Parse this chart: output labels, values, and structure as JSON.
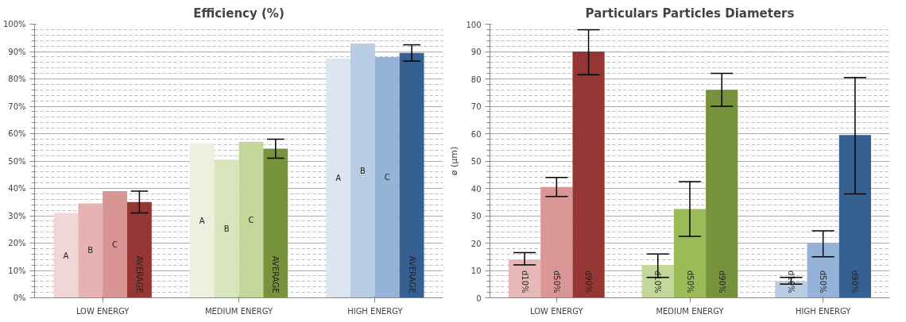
{
  "chart_data": [
    {
      "type": "bar",
      "title": "Efficiency (%)",
      "categories": [
        "LOW ENERGY",
        "MEDIUM ENERGY",
        "HIGH ENERGY"
      ],
      "series": [
        {
          "name": "A",
          "colors": [
            "#f0d6d6",
            "#ebf1de",
            "#dce6f1"
          ],
          "values": [
            31,
            56.5,
            87.5
          ]
        },
        {
          "name": "B",
          "colors": [
            "#e6b3b3",
            "#d8e4bc",
            "#b8cce4"
          ],
          "values": [
            34.5,
            50.5,
            93
          ]
        },
        {
          "name": "C",
          "colors": [
            "#d99594",
            "#c4d79b",
            "#95b3d7"
          ],
          "values": [
            39,
            57,
            88
          ]
        },
        {
          "name": "AVERAGE",
          "colors": [
            "#963634",
            "#77933c",
            "#366092"
          ],
          "values": [
            35,
            54.5,
            89.5
          ],
          "errors": [
            [
              31,
              39
            ],
            [
              51,
              58
            ],
            [
              86.5,
              92.5
            ]
          ]
        }
      ],
      "ylim": [
        0,
        100
      ],
      "yticks": [
        {
          "value": 0,
          "label": "0%"
        },
        {
          "value": 10,
          "label": "10%"
        },
        {
          "value": 20,
          "label": "20%"
        },
        {
          "value": 30,
          "label": "30%"
        },
        {
          "value": 40,
          "label": "40%"
        },
        {
          "value": 50,
          "label": "50%"
        },
        {
          "value": 60,
          "label": "60%"
        },
        {
          "value": 70,
          "label": "70%"
        },
        {
          "value": 80,
          "label": "80%"
        },
        {
          "value": 90,
          "label": "90%"
        },
        {
          "value": 100,
          "label": "100%"
        }
      ],
      "grid": "y"
    },
    {
      "type": "bar",
      "title": "Particulars Particles Diameters",
      "ylabel": "ø (µm)",
      "categories": [
        "LOW ENERGY",
        "MEDIUM ENERGY",
        "HIGH ENERGY"
      ],
      "series": [
        {
          "name": "d10%",
          "colors": [
            "#e6b8b7",
            "#c4d79b",
            "#b8cce4"
          ],
          "values": [
            14,
            12,
            6
          ],
          "errors": [
            [
              12,
              16.5
            ],
            [
              7.5,
              16
            ],
            [
              5,
              7.5
            ]
          ]
        },
        {
          "name": "d50%",
          "colors": [
            "#da9694",
            "#9bbb59",
            "#95b3d7"
          ],
          "values": [
            40.5,
            32.5,
            20
          ],
          "errors": [
            [
              37,
              44
            ],
            [
              22.5,
              42.5
            ],
            [
              15,
              24.5
            ]
          ]
        },
        {
          "name": "d90%",
          "colors": [
            "#963634",
            "#76933c",
            "#366092"
          ],
          "values": [
            90,
            76,
            59.5
          ],
          "errors": [
            [
              81.5,
              98
            ],
            [
              70,
              82
            ],
            [
              38,
              80.5
            ]
          ]
        }
      ],
      "ylim": [
        0,
        100
      ],
      "yticks": [
        0,
        10,
        20,
        30,
        40,
        50,
        60,
        70,
        80,
        90,
        100
      ],
      "grid": "y"
    }
  ]
}
